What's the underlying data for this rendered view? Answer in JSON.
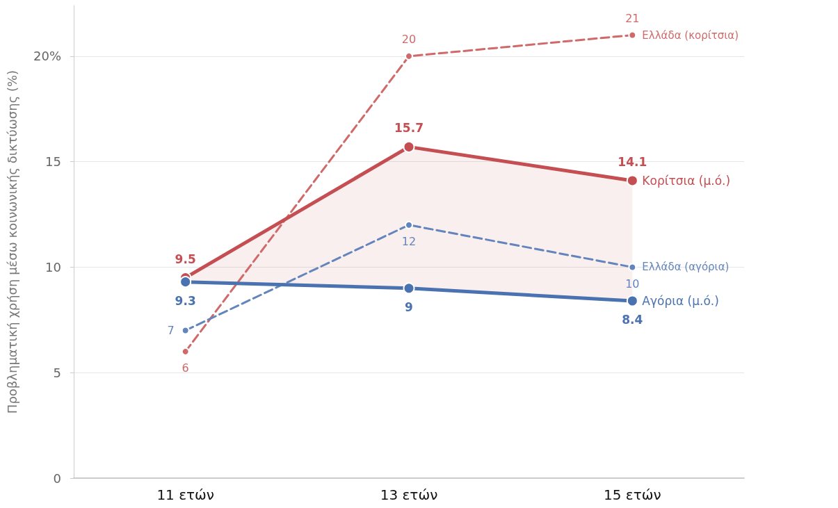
{
  "chart_data": {
    "type": "line",
    "ylabel": "Προβληματική χρήση μέσω κοινωνικής δικτύωσης (%)",
    "categories": [
      "11 ετών",
      "13 ετών",
      "15 ετών"
    ],
    "series": [
      {
        "name": "Κορίτσια (μ.ό.)",
        "color": "#c44e52",
        "values": [
          9.5,
          15.7,
          14.1
        ],
        "lower": [
          9.3,
          9,
          8.4
        ],
        "upper": [
          9.5,
          15.7,
          14.1
        ],
        "line_style": "solid"
      },
      {
        "name": "Αγόρια (μ.ό.)",
        "color": "#4a72b0",
        "values": [
          9.3,
          9,
          8.4
        ],
        "line_style": "solid"
      },
      {
        "name": "Ελλάδα (κορίτσια)",
        "color": "#d06a6a",
        "values": [
          6,
          20,
          21
        ],
        "line_style": "dashed"
      },
      {
        "name": "Ελλάδα (αγόρια)",
        "color": "#6384bc",
        "values": [
          7,
          12,
          10
        ],
        "line_style": "dashed"
      }
    ],
    "ylim": [
      0,
      22.4
    ],
    "yticks": [
      0,
      5,
      10,
      15,
      {
        "value": 20,
        "label": "20%"
      }
    ],
    "grid": "y",
    "legend": false,
    "marker": "circle",
    "data_labels": true
  }
}
